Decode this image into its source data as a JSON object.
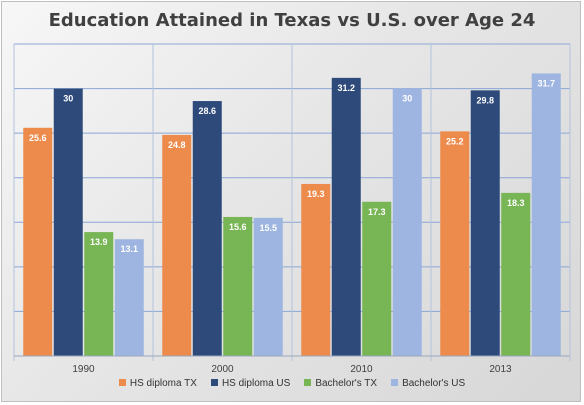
{
  "chart_data": {
    "type": "bar",
    "title": "Education Attained in Texas vs U.S. over Age 24",
    "xlabel": "",
    "ylabel": "",
    "categories": [
      "1990",
      "2000",
      "2010",
      "2013"
    ],
    "series": [
      {
        "name": "HS diploma TX",
        "values": [
          25.6,
          24.8,
          19.3,
          25.2
        ],
        "color": "#ed8b4c"
      },
      {
        "name": "HS diploma US",
        "values": [
          30,
          28.6,
          31.2,
          29.8
        ],
        "color": "#2d4a7a"
      },
      {
        "name": "Bachelor's TX",
        "values": [
          13.9,
          15.6,
          17.3,
          18.3
        ],
        "color": "#77b555"
      },
      {
        "name": "Bachelor's US",
        "values": [
          13.1,
          15.5,
          30,
          31.7
        ],
        "color": "#9db5e0"
      }
    ],
    "ylim": [
      0,
      35
    ],
    "ytick_step": 5,
    "gridlines": true,
    "data_labels": true,
    "legend": "bottom"
  }
}
